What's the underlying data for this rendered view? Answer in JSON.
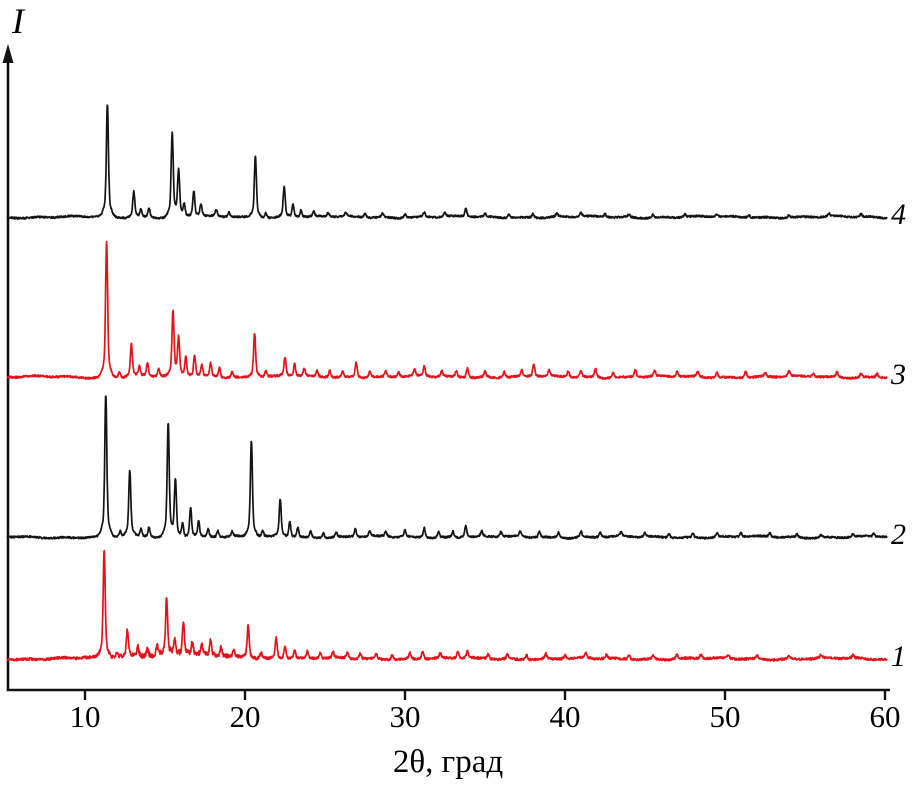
{
  "chart_data": {
    "type": "line",
    "title": "",
    "xlabel": "2θ, град",
    "ylabel": "I",
    "xlim": [
      5,
      60
    ],
    "x_ticks": [
      10,
      20,
      30,
      40,
      50,
      60
    ],
    "grid": false,
    "legend_position": "right-margin-trace-labels",
    "axis_color": "#111111",
    "description": "Four stacked powder X-ray diffraction patterns (intensity vs 2-theta in degrees), traces labeled 1-4 bottom to top; peaks listed as [two_theta_deg, relative_intensity_px]",
    "series": [
      {
        "name": "4",
        "color": "#141414",
        "baseline": 218,
        "noise": 1.8,
        "hump": 0,
        "peaks": [
          [
            11.4,
            112
          ],
          [
            13.05,
            26
          ],
          [
            13.5,
            8
          ],
          [
            14.0,
            10
          ],
          [
            15.45,
            84
          ],
          [
            15.85,
            46
          ],
          [
            16.2,
            12
          ],
          [
            16.8,
            26
          ],
          [
            17.25,
            12
          ],
          [
            18.2,
            7
          ],
          [
            19.0,
            5
          ],
          [
            20.65,
            62
          ],
          [
            21.3,
            5
          ],
          [
            22.45,
            30
          ],
          [
            23.0,
            13
          ],
          [
            23.5,
            7
          ],
          [
            24.3,
            5
          ],
          [
            25.2,
            4
          ],
          [
            26.3,
            4
          ],
          [
            27.5,
            4
          ],
          [
            28.6,
            4
          ],
          [
            30.0,
            4
          ],
          [
            31.2,
            5
          ],
          [
            32.5,
            4
          ],
          [
            33.8,
            8
          ],
          [
            35.0,
            3
          ],
          [
            36.5,
            4
          ],
          [
            38.0,
            4
          ],
          [
            39.5,
            3
          ],
          [
            41.0,
            4
          ],
          [
            42.5,
            3
          ],
          [
            44.0,
            3
          ],
          [
            45.5,
            3
          ],
          [
            47.5,
            3
          ],
          [
            49.5,
            3
          ],
          [
            51.5,
            3
          ],
          [
            54.0,
            3
          ],
          [
            56.5,
            3
          ],
          [
            58.5,
            3
          ]
        ]
      },
      {
        "name": "3",
        "color": "#e3131b",
        "baseline": 378,
        "noise": 2.0,
        "hump": 0,
        "peaks": [
          [
            11.35,
            136
          ],
          [
            12.15,
            6
          ],
          [
            12.9,
            33
          ],
          [
            13.4,
            10
          ],
          [
            13.9,
            14
          ],
          [
            14.6,
            8
          ],
          [
            15.5,
            64
          ],
          [
            15.85,
            38
          ],
          [
            16.3,
            20
          ],
          [
            16.85,
            22
          ],
          [
            17.3,
            12
          ],
          [
            17.85,
            14
          ],
          [
            18.4,
            10
          ],
          [
            19.2,
            6
          ],
          [
            20.6,
            44
          ],
          [
            21.3,
            6
          ],
          [
            22.5,
            19
          ],
          [
            23.1,
            13
          ],
          [
            23.7,
            8
          ],
          [
            24.5,
            6
          ],
          [
            25.3,
            7
          ],
          [
            26.1,
            6
          ],
          [
            26.95,
            16
          ],
          [
            27.8,
            6
          ],
          [
            28.8,
            6
          ],
          [
            29.6,
            5
          ],
          [
            30.6,
            7
          ],
          [
            31.2,
            10
          ],
          [
            32.3,
            6
          ],
          [
            33.2,
            6
          ],
          [
            33.9,
            10
          ],
          [
            35.0,
            6
          ],
          [
            36.2,
            6
          ],
          [
            37.3,
            6
          ],
          [
            38.05,
            13
          ],
          [
            39.0,
            6
          ],
          [
            40.2,
            6
          ],
          [
            41.0,
            6
          ],
          [
            41.9,
            9
          ],
          [
            43.0,
            5
          ],
          [
            44.4,
            8
          ],
          [
            45.6,
            5
          ],
          [
            47.0,
            5
          ],
          [
            48.3,
            5
          ],
          [
            49.5,
            5
          ],
          [
            51.3,
            7
          ],
          [
            52.5,
            4
          ],
          [
            54.0,
            5
          ],
          [
            55.5,
            4
          ],
          [
            57.0,
            5
          ],
          [
            58.5,
            4
          ],
          [
            59.5,
            4
          ]
        ]
      },
      {
        "name": "2",
        "color": "#141414",
        "baseline": 538,
        "noise": 1.8,
        "hump": 0,
        "peaks": [
          [
            11.3,
            142
          ],
          [
            12.2,
            6
          ],
          [
            12.8,
            66
          ],
          [
            13.5,
            8
          ],
          [
            14.0,
            10
          ],
          [
            15.2,
            114
          ],
          [
            15.65,
            58
          ],
          [
            16.1,
            14
          ],
          [
            16.6,
            30
          ],
          [
            17.1,
            16
          ],
          [
            17.7,
            8
          ],
          [
            18.3,
            7
          ],
          [
            19.2,
            5
          ],
          [
            20.4,
            96
          ],
          [
            21.1,
            6
          ],
          [
            22.2,
            38
          ],
          [
            22.8,
            16
          ],
          [
            23.3,
            10
          ],
          [
            24.1,
            6
          ],
          [
            24.9,
            5
          ],
          [
            25.7,
            5
          ],
          [
            26.9,
            8
          ],
          [
            27.8,
            5
          ],
          [
            28.8,
            5
          ],
          [
            30.0,
            7
          ],
          [
            31.2,
            10
          ],
          [
            32.1,
            6
          ],
          [
            33.0,
            6
          ],
          [
            33.8,
            12
          ],
          [
            34.8,
            5
          ],
          [
            36.0,
            5
          ],
          [
            37.2,
            5
          ],
          [
            38.4,
            6
          ],
          [
            39.6,
            5
          ],
          [
            41.0,
            6
          ],
          [
            42.2,
            5
          ],
          [
            43.5,
            4
          ],
          [
            45.0,
            4
          ],
          [
            46.5,
            4
          ],
          [
            48.0,
            4
          ],
          [
            49.5,
            4
          ],
          [
            51.0,
            4
          ],
          [
            52.8,
            4
          ],
          [
            54.5,
            3
          ],
          [
            56.0,
            3
          ],
          [
            58.0,
            3
          ],
          [
            59.3,
            3
          ]
        ]
      },
      {
        "name": "1",
        "color": "#e3131b",
        "baseline": 660,
        "noise": 2.3,
        "hump": 3,
        "peaks": [
          [
            11.2,
            106
          ],
          [
            12.0,
            6
          ],
          [
            12.65,
            27
          ],
          [
            13.3,
            10
          ],
          [
            13.9,
            8
          ],
          [
            14.5,
            10
          ],
          [
            15.1,
            56
          ],
          [
            15.6,
            16
          ],
          [
            16.15,
            32
          ],
          [
            16.7,
            12
          ],
          [
            17.3,
            10
          ],
          [
            17.85,
            16
          ],
          [
            18.5,
            9
          ],
          [
            19.3,
            6
          ],
          [
            20.2,
            33
          ],
          [
            21.0,
            6
          ],
          [
            21.95,
            21
          ],
          [
            22.5,
            13
          ],
          [
            23.1,
            9
          ],
          [
            23.9,
            7
          ],
          [
            24.7,
            6
          ],
          [
            25.5,
            6
          ],
          [
            26.4,
            6
          ],
          [
            27.2,
            6
          ],
          [
            28.2,
            5
          ],
          [
            29.2,
            5
          ],
          [
            30.3,
            6
          ],
          [
            31.1,
            8
          ],
          [
            32.2,
            5
          ],
          [
            33.3,
            7
          ],
          [
            33.9,
            7
          ],
          [
            35.2,
            5
          ],
          [
            36.4,
            5
          ],
          [
            37.6,
            5
          ],
          [
            38.8,
            5
          ],
          [
            40.0,
            4
          ],
          [
            41.3,
            5
          ],
          [
            42.6,
            4
          ],
          [
            44.0,
            5
          ],
          [
            45.5,
            4
          ],
          [
            47.0,
            4
          ],
          [
            48.5,
            4
          ],
          [
            50.2,
            4
          ],
          [
            52.0,
            4
          ],
          [
            54.0,
            3
          ],
          [
            56.0,
            3
          ],
          [
            58.0,
            3
          ]
        ]
      }
    ]
  }
}
